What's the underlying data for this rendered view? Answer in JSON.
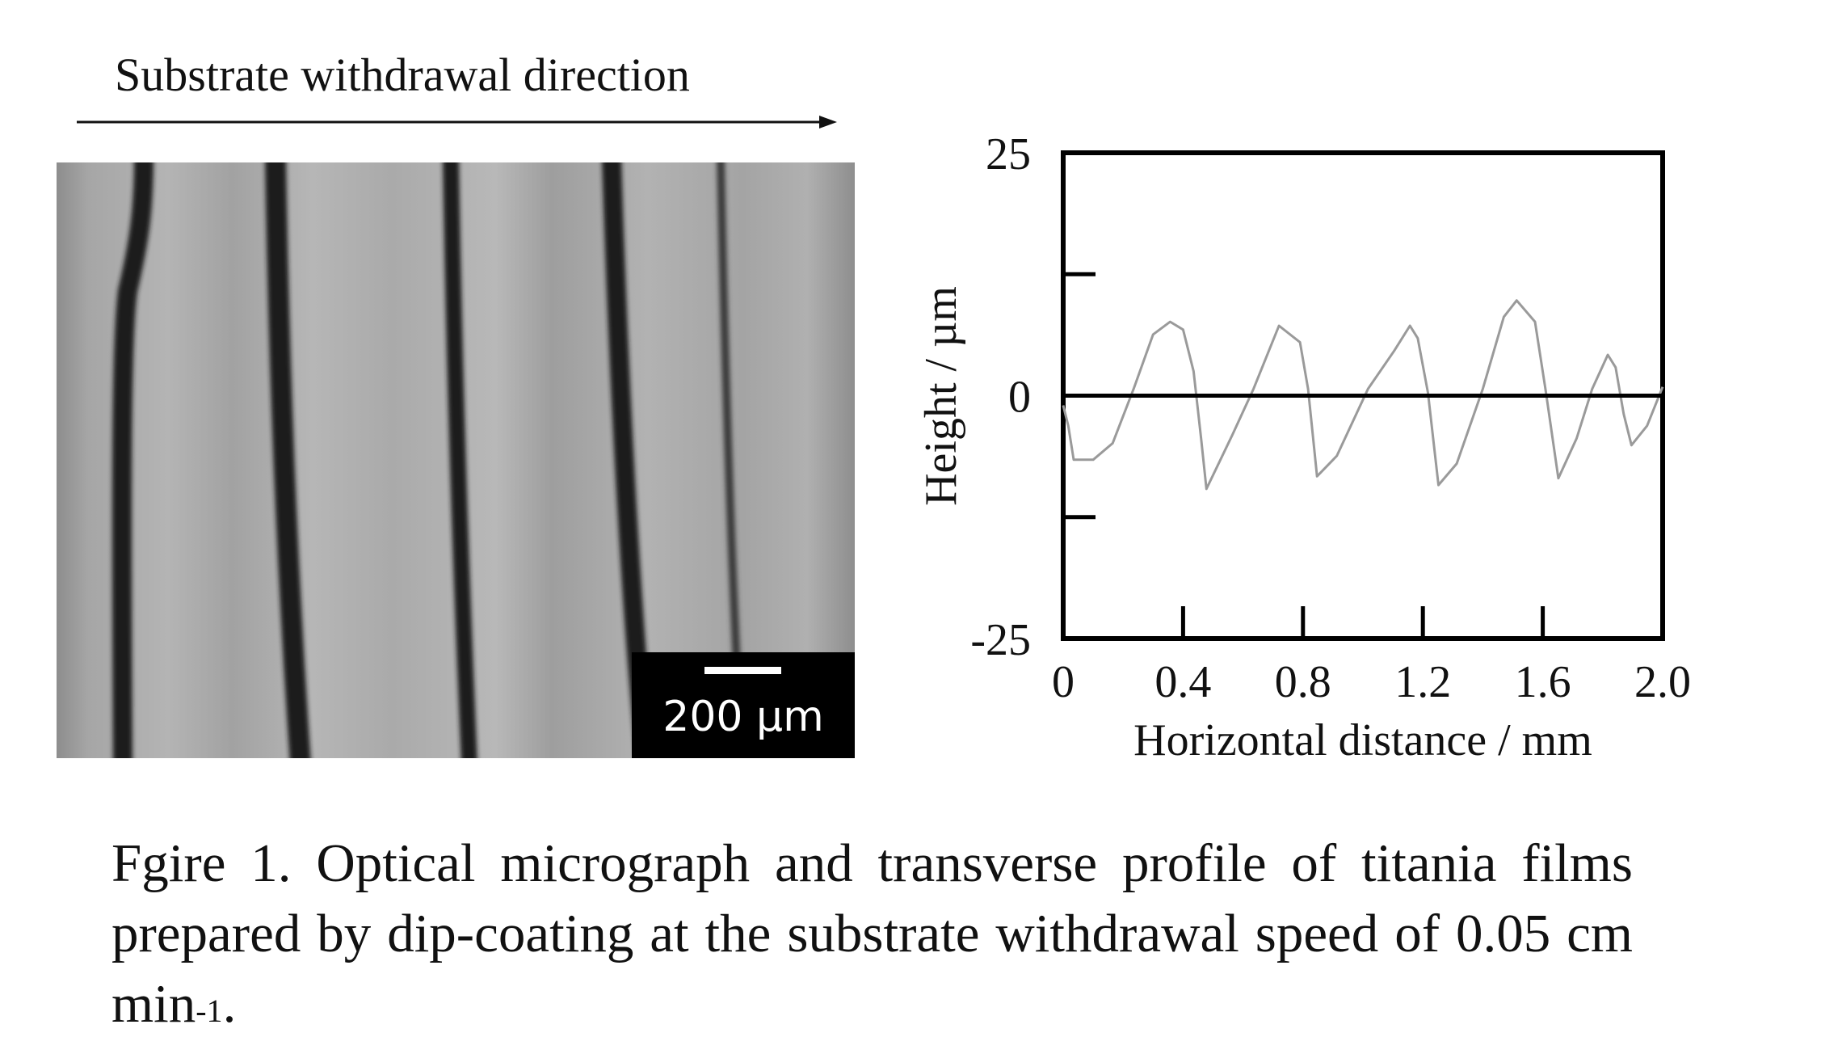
{
  "micrograph": {
    "direction_label": "Substrate withdrawal direction",
    "scale_bar_label": "200 µm"
  },
  "chart_data": {
    "type": "line",
    "title": "",
    "xlabel": "Horizontal distance / mm",
    "ylabel": "Height / µm",
    "xlim": [
      0,
      2.0
    ],
    "ylim": [
      -25,
      25
    ],
    "x_ticks": [
      "0",
      "0.4",
      "0.8",
      "1.2",
      "1.6",
      "2.0"
    ],
    "y_ticks": [
      "25",
      "0",
      "-25"
    ],
    "y_minor_ticks": [
      12.5,
      -12.5
    ],
    "grid": false,
    "series": [
      {
        "name": "transverse profile",
        "color": "#9a9a9a",
        "x": [
          0.0,
          0.017,
          0.035,
          0.1,
          0.165,
          0.235,
          0.3,
          0.357,
          0.4,
          0.435,
          0.46,
          0.478,
          0.565,
          0.635,
          0.72,
          0.79,
          0.817,
          0.847,
          0.913,
          1.017,
          1.104,
          1.157,
          1.183,
          1.217,
          1.252,
          1.313,
          1.4,
          1.47,
          1.513,
          1.574,
          1.609,
          1.652,
          1.713,
          1.765,
          1.817,
          1.843,
          1.87,
          1.896,
          1.948,
          2.0
        ],
        "y": [
          -1.0,
          -3.1,
          -6.6,
          -6.6,
          -4.9,
          0.7,
          6.3,
          7.6,
          6.8,
          2.5,
          -4.4,
          -9.6,
          -4.0,
          0.7,
          7.2,
          5.5,
          0.7,
          -8.3,
          -6.2,
          0.7,
          4.6,
          7.2,
          5.9,
          0.3,
          -9.2,
          -7.0,
          0.7,
          8.1,
          9.8,
          7.6,
          0.7,
          -8.5,
          -4.4,
          0.7,
          4.2,
          2.9,
          -1.9,
          -5.1,
          -3.1,
          0.9
        ]
      }
    ],
    "reference_line": 0
  },
  "caption": {
    "text": "Fgire 1. Optical micrograph and transverse profile of titania films prepared by dip-coating at the substrate withdrawal speed of 0.05 cm min",
    "superscript": "-1",
    "end": "."
  }
}
